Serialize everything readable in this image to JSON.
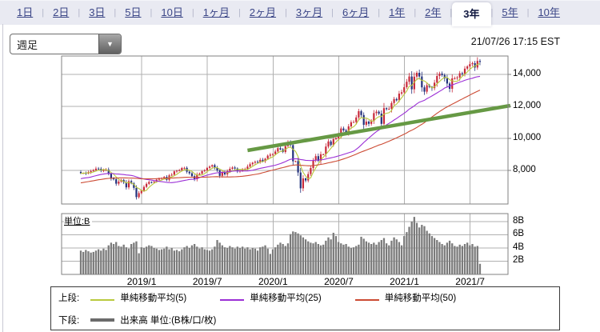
{
  "header": {
    "timestamp": "21/07/26 17:15 EST"
  },
  "tabs": {
    "items": [
      "1日",
      "2日",
      "3日",
      "5日",
      "10日",
      "1ヶ月",
      "2ヶ月",
      "3ヶ月",
      "6ヶ月",
      "1年",
      "2年",
      "3年",
      "5年",
      "10年"
    ],
    "selected": "3年"
  },
  "controls": {
    "chart_type_value": "週足"
  },
  "legend": {
    "upper_label": "上段:",
    "upper_items": [
      {
        "label": "単純移動平均(5)",
        "color": "#b9c93d"
      },
      {
        "label": "単純移動平均(25)",
        "color": "#9b2fd6"
      },
      {
        "label": "単純移動平均(50)",
        "color": "#cc4a33"
      }
    ],
    "lower_label": "下段:",
    "lower_item": {
      "label": "出来高 単位:(B株/口/枚)",
      "color": "#6b6b6b"
    }
  },
  "colors": {
    "tabbar_bg": "#e9eaf2",
    "tab_link": "#3b4687",
    "grid": "#b0b0b0",
    "frame": "#828282",
    "candle_up": "#c8293a",
    "candle_down": "#22307c",
    "volume_bar": "#7b7b7b",
    "ma5": "#b9c93d",
    "ma25": "#9b2fd6",
    "ma50": "#cc4a33",
    "trendline": "#669944"
  },
  "chart_data": {
    "type": "candlestick",
    "interval": "weekly",
    "title": "",
    "y_axis": {
      "side": "right",
      "ticks": [
        "14,000",
        "12,000",
        "10,000",
        "8,000"
      ],
      "tick_values": [
        14000,
        12000,
        10000,
        8000
      ],
      "range": [
        5900,
        15150
      ],
      "grid": true
    },
    "x_axis": {
      "labels": [
        "2019/1",
        "2019/7",
        "2020/1",
        "2020/7",
        "2021/1",
        "2021/7"
      ],
      "label_week_index": [
        24.1,
        50.1,
        76.1,
        102.1,
        128.1,
        154.1
      ],
      "grid": true
    },
    "volume_axis": {
      "unit_label": "単位:B",
      "ticks": [
        "8B",
        "6B",
        "4B",
        "2B"
      ],
      "tick_values": [
        8,
        6,
        4,
        2
      ],
      "range_b": [
        0,
        9.2
      ]
    },
    "trendline": {
      "start": {
        "week_index": 66,
        "value": 9250
      },
      "end": {
        "week_index": 170,
        "value": 12050
      },
      "color": "#669944",
      "width": 4.5
    },
    "moving_average_windows": [
      5,
      25,
      50
    ],
    "series": {
      "closes_prehistory": [
        6340,
        6430,
        6460,
        6520,
        6560,
        6600,
        6670,
        6740,
        6790,
        6870,
        6910,
        6960,
        7000,
        6910,
        6880,
        7050,
        7130,
        7240,
        7310,
        7420,
        7510,
        7240,
        6870,
        7330,
        7290,
        7230,
        6990,
        7260,
        7460,
        7100,
        6920,
        7070,
        7210,
        7120,
        7350,
        7410,
        7440,
        7530,
        7630,
        7750,
        7510,
        7690,
        7720,
        7500,
        7560,
        7690,
        7820,
        7740,
        7810,
        7900
      ],
      "closes": [
        7820,
        7840,
        7810,
        7890,
        7950,
        8010,
        8110,
        8100,
        7990,
        8010,
        8050,
        7790,
        7490,
        7450,
        7170,
        7300,
        7410,
        7250,
        6940,
        7330,
        7190,
        6910,
        6330,
        6580,
        6740,
        6970,
        7160,
        7280,
        7260,
        7300,
        7420,
        7470,
        7530,
        7590,
        7410,
        7690,
        7730,
        7940,
        7980,
        8000,
        8150,
        8160,
        7920,
        7820,
        7640,
        7450,
        7740,
        7800,
        7950,
        8000,
        8160,
        8240,
        8330,
        8150,
        8000,
        7660,
        7900,
        7750,
        7960,
        8100,
        8180,
        8120,
        7940,
        7980,
        8060,
        8090,
        8240,
        8390,
        8480,
        8540,
        8520,
        8660,
        8570,
        8730,
        8920,
        8990,
        9020,
        9180,
        9390,
        9310,
        9150,
        9520,
        9730,
        9580,
        8570,
        8580,
        7870,
        6880,
        7500,
        7370,
        7770,
        8150,
        8630,
        8890,
        8600,
        9010,
        9010,
        9490,
        9810,
        9590,
        9950,
        10020,
        10210,
        10620,
        10500,
        10360,
        10750,
        11010,
        11020,
        11310,
        11700,
        11460,
        10850,
        11050,
        10910,
        11080,
        11580,
        11670,
        11550,
        10910,
        11890,
        11830,
        11850,
        12210,
        12460,
        12380,
        12800,
        12880,
        13200,
        13540,
        13870,
        13070,
        13860,
        14100,
        13870,
        13190,
        12920,
        13320,
        13220,
        13140,
        13480,
        13900,
        14050,
        13960,
        13750,
        13430,
        13100,
        13750,
        13760,
        13810,
        14070,
        14030,
        14360,
        14500,
        14640,
        14700,
        14430,
        14840,
        14780
      ],
      "volumes_b": [
        3.6,
        3.4,
        3.7,
        3.5,
        3.3,
        3.4,
        3.6,
        3.8,
        3.6,
        3.9,
        3.7,
        4.4,
        4.8,
        4.6,
        4.9,
        4.3,
        4.2,
        4.5,
        4.1,
        3.9,
        4.6,
        4.8,
        5.0,
        3.2,
        4.1,
        4.0,
        4.2,
        4.4,
        4.3,
        4.0,
        3.9,
        3.7,
        3.8,
        3.9,
        4.2,
        3.8,
        4.0,
        3.6,
        3.7,
        3.5,
        3.8,
        4.1,
        4.3,
        4.0,
        4.4,
        4.6,
        4.2,
        3.9,
        4.1,
        3.8,
        3.7,
        3.6,
        3.8,
        4.2,
        5.2,
        4.8,
        4.4,
        4.1,
        4.0,
        4.3,
        4.1,
        3.9,
        4.2,
        4.0,
        4.2,
        3.9,
        4.1,
        3.8,
        4.0,
        3.9,
        3.6,
        4.1,
        4.2,
        4.4,
        3.9,
        3.1,
        3.8,
        4.1,
        4.5,
        4.8,
        4.6,
        4.3,
        4.7,
        6.1,
        6.5,
        6.4,
        6.2,
        5.9,
        5.6,
        5.3,
        5.0,
        4.8,
        4.7,
        4.9,
        4.6,
        4.4,
        4.5,
        5.1,
        5.6,
        5.3,
        6.3,
        5.8,
        4.9,
        4.7,
        4.5,
        4.6,
        4.2,
        4.0,
        4.1,
        4.3,
        4.5,
        5.7,
        5.4,
        5.0,
        4.8,
        4.6,
        4.8,
        4.5,
        4.9,
        5.2,
        5.5,
        4.7,
        4.4,
        5.1,
        5.6,
        5.3,
        4.9,
        4.4,
        5.8,
        6.4,
        7.2,
        8.0,
        8.7,
        7.8,
        7.1,
        7.5,
        7.3,
        6.6,
        6.2,
        5.8,
        5.5,
        5.2,
        4.9,
        4.6,
        4.4,
        4.8,
        5.1,
        4.7,
        4.3,
        4.2,
        4.5,
        4.3,
        4.6,
        4.8,
        4.4,
        4.6,
        4.2,
        4.3,
        1.6
      ]
    }
  }
}
